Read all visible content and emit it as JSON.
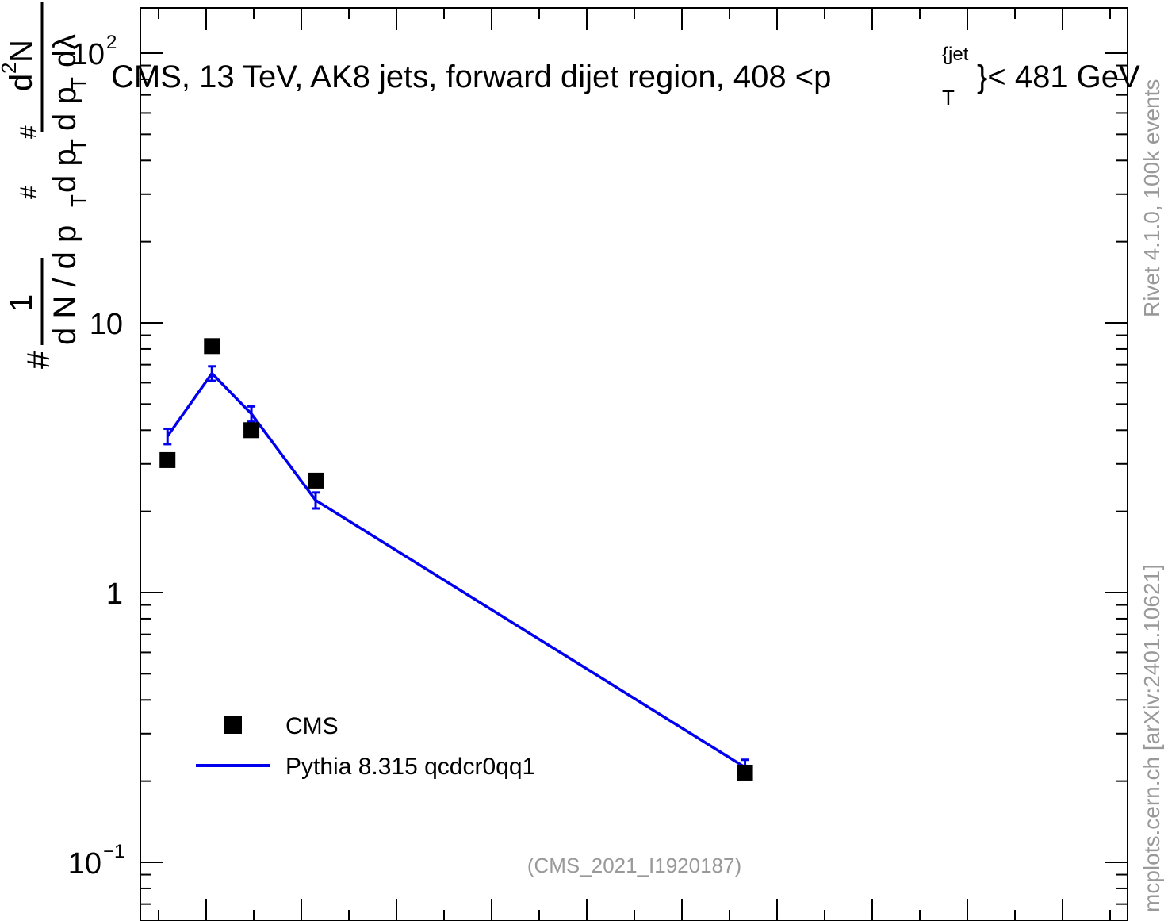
{
  "chart_data": {
    "type": "line",
    "title": "CMS, 13 TeV, AK8 jets, forward dijet region, 408 <p",
    "title_sup": "{jet",
    "title_sub": "T",
    "title_close": "}< 481 GeV",
    "ylabel_sections": {
      "hash": "#",
      "one": "1",
      "dN": "d N / d p",
      "T1": "T",
      "hash2": "#",
      "dpT": "d p",
      "T2": "T",
      "hash3": "#",
      "d2N": "d",
      "two": "2",
      "N": "N",
      "dpT2": "d p",
      "T3": "T",
      "dlambda": "dλ"
    },
    "yscale": "log",
    "ylim": [
      0.07,
      200
    ],
    "y_ticks": [
      {
        "value": 100,
        "base": "10",
        "exp": "2"
      },
      {
        "value": 10,
        "base": "10",
        "exp": ""
      },
      {
        "value": 1,
        "base": "1",
        "exp": ""
      },
      {
        "value": 0.1,
        "base": "10",
        "exp": "−1"
      }
    ],
    "xlim": [
      0,
      1
    ],
    "x_ticks_shown": false,
    "series": [
      {
        "name": "CMS",
        "style": "markers",
        "color": "#000000",
        "x": [
          0.0275,
          0.0725,
          0.1125,
          0.1775,
          0.6125
        ],
        "y": [
          3.1,
          8.2,
          4.0,
          2.6,
          0.215
        ]
      },
      {
        "name": "Pythia 8.315 qcdcr0qq1",
        "style": "line",
        "color": "#0000ee",
        "x": [
          0.0275,
          0.0725,
          0.1125,
          0.1775,
          0.6125
        ],
        "y": [
          3.8,
          6.5,
          4.6,
          2.2,
          0.225
        ],
        "yerr": [
          0.25,
          0.4,
          0.3,
          0.15,
          0.015
        ]
      }
    ],
    "legend_position": "bottom-left",
    "watermark": "(CMS_2021_I1920187)",
    "side_text_top": "Rivet 4.1.0,  100k events",
    "side_text_bottom": "mcplots.cern.ch [arXiv:2401.10621]",
    "grid": false
  }
}
